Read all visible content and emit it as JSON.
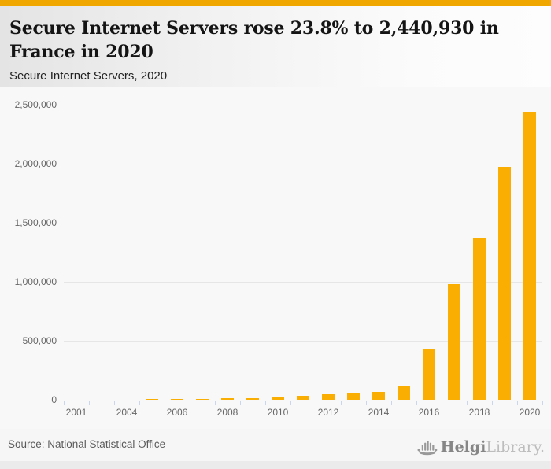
{
  "header": {
    "title_line1": "Secure Internet Servers rose 23.8% to 2,440,930 in",
    "title_line2": "France in 2020",
    "subtitle": "Secure Internet Servers, 2020"
  },
  "footer": {
    "source": "Source: National Statistical Office",
    "brand_primary": "Helgi",
    "brand_secondary": "Library."
  },
  "colors": {
    "accent_bar": "#F0A800",
    "bar": "#FAAE01",
    "grid": "#E6E6E6",
    "axis": "#CCD6EB",
    "axis_label": "#666666"
  },
  "chart_data": {
    "type": "bar",
    "title": "Secure Internet Servers rose 23.8% to 2,440,930 in France in 2020",
    "subtitle": "Secure Internet Servers, 2020",
    "xlabel": "",
    "ylabel": "",
    "categories": [
      2001,
      2002,
      2004,
      2005,
      2006,
      2007,
      2008,
      2009,
      2010,
      2011,
      2012,
      2013,
      2014,
      2015,
      2016,
      2017,
      2018,
      2019,
      2020
    ],
    "values": [
      1000,
      1500,
      2500,
      3500,
      5000,
      7000,
      13000,
      12500,
      18000,
      30000,
      45000,
      61000,
      67000,
      115000,
      433000,
      982000,
      1369000,
      1971672,
      2440930
    ],
    "highlight_value_2020": "2,440,930",
    "yoy_change_pct": "23.8%",
    "ylim": [
      0,
      2500000
    ],
    "y_ticks": [
      0,
      500000,
      1000000,
      1500000,
      2000000,
      2500000
    ],
    "y_tick_labels": [
      "0",
      "500,000",
      "1,000,000",
      "1,500,000",
      "2,000,000",
      "2,500,000"
    ],
    "x_tick_labels": [
      "2001",
      "2004",
      "2006",
      "2008",
      "2010",
      "2012",
      "2014",
      "2016",
      "2018",
      "2020"
    ],
    "x_label_step": 2,
    "grid": "horizontal",
    "legend": "none",
    "bar_color": "#FAAE01"
  }
}
